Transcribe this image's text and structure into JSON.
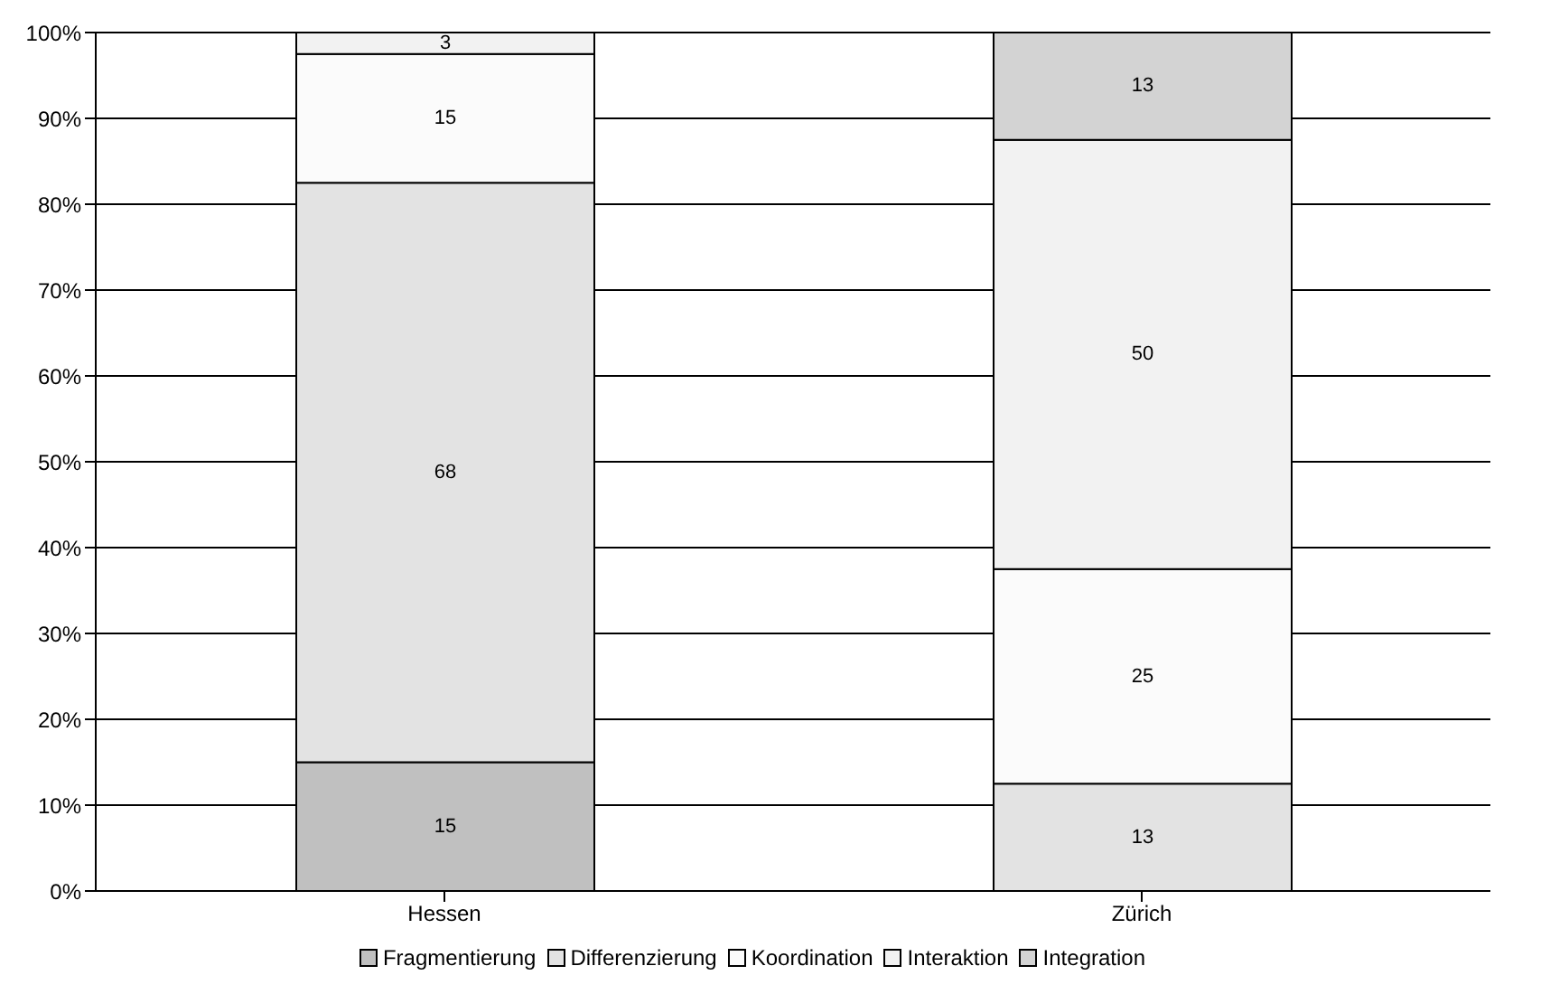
{
  "chart_data": {
    "type": "bar",
    "stacked": true,
    "categories": [
      "Hessen",
      "Zürich"
    ],
    "series": [
      {
        "name": "Fragmentierung",
        "color": "#c0c0c0",
        "values": [
          15,
          null
        ],
        "value_labels": [
          "15",
          null
        ]
      },
      {
        "name": "Differenzierung",
        "color": "#e3e3e3",
        "values": [
          67.5,
          12.5
        ],
        "value_labels": [
          "68",
          "13"
        ]
      },
      {
        "name": "Koordination",
        "color": "#fbfbfb",
        "values": [
          15,
          25
        ],
        "value_labels": [
          "15",
          "25"
        ]
      },
      {
        "name": "Interaktion",
        "color": "#f2f2f2",
        "values": [
          2.5,
          50
        ],
        "value_labels": [
          "3",
          "50"
        ]
      },
      {
        "name": "Integration",
        "color": "#d3d3d3",
        "values": [
          null,
          12.5
        ],
        "value_labels": [
          null,
          "13"
        ]
      }
    ],
    "ylim": [
      0,
      100
    ],
    "yticks": [
      {
        "value": 0,
        "label": "0%"
      },
      {
        "value": 10,
        "label": "10%"
      },
      {
        "value": 20,
        "label": "20%"
      },
      {
        "value": 30,
        "label": "30%"
      },
      {
        "value": 40,
        "label": "40%"
      },
      {
        "value": 50,
        "label": "50%"
      },
      {
        "value": 60,
        "label": "60%"
      },
      {
        "value": 70,
        "label": "70%"
      },
      {
        "value": 80,
        "label": "80%"
      },
      {
        "value": 90,
        "label": "90%"
      },
      {
        "value": 100,
        "label": "100%"
      }
    ],
    "grid": "y",
    "legend": "bottom"
  }
}
